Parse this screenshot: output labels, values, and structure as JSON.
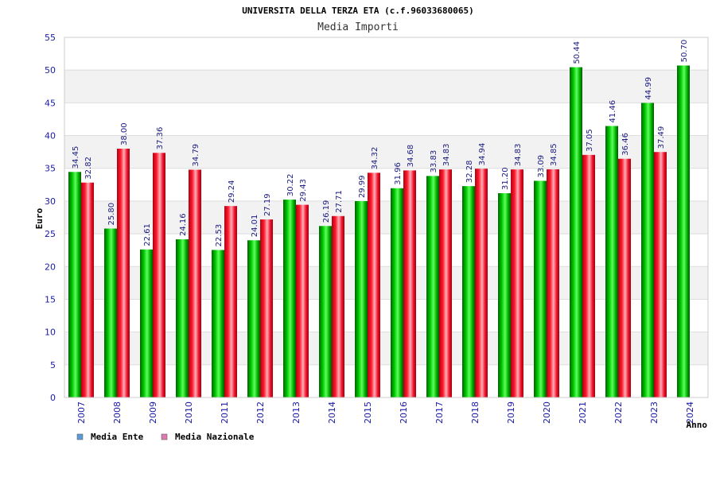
{
  "chart_data": {
    "type": "bar",
    "title": "UNIVERSITA DELLA TERZA ETA (c.f.96033680065)",
    "subtitle": "Media Importi",
    "xlabel": "Anno",
    "ylabel": "Euro",
    "ylim": [
      0,
      55
    ],
    "yticks": [
      0,
      5,
      10,
      15,
      20,
      25,
      30,
      35,
      40,
      45,
      50,
      55
    ],
    "grid": true,
    "legend_position": "bottom-left",
    "categories": [
      "2007",
      "2008",
      "2009",
      "2010",
      "2011",
      "2012",
      "2013",
      "2014",
      "2015",
      "2016",
      "2017",
      "2018",
      "2019",
      "2020",
      "2021",
      "2022",
      "2023",
      "2024"
    ],
    "series": [
      {
        "name": "Media Ente",
        "color": "#00b000",
        "legend_color": "#5b9bd5",
        "values": [
          34.45,
          25.8,
          22.61,
          24.16,
          22.53,
          24.01,
          30.22,
          26.19,
          29.99,
          31.96,
          33.83,
          32.28,
          31.2,
          33.09,
          50.44,
          41.46,
          44.99,
          50.7
        ],
        "labels": [
          "34.45",
          "25.80",
          "22.61",
          "24.16",
          "22.53",
          "24.01",
          "30.22",
          "26.19",
          "29.99",
          "31.96",
          "33.83",
          "32.28",
          "31.20",
          "33.09",
          "50.44",
          "41.46",
          "44.99",
          "50.70"
        ]
      },
      {
        "name": "Media Nazionale",
        "color": "#e8001a",
        "legend_color": "#d97ab0",
        "values": [
          32.82,
          38.0,
          37.36,
          34.79,
          29.24,
          27.19,
          29.43,
          27.71,
          34.32,
          34.68,
          34.83,
          34.94,
          34.83,
          34.85,
          37.05,
          36.46,
          37.49,
          null
        ],
        "labels": [
          "32.82",
          "38.00",
          "37.36",
          "34.79",
          "29.24",
          "27.19",
          "29.43",
          "27.71",
          "34.32",
          "34.68",
          "34.83",
          "34.94",
          "34.83",
          "34.85",
          "37.05",
          "36.46",
          "37.49",
          ""
        ]
      }
    ]
  }
}
